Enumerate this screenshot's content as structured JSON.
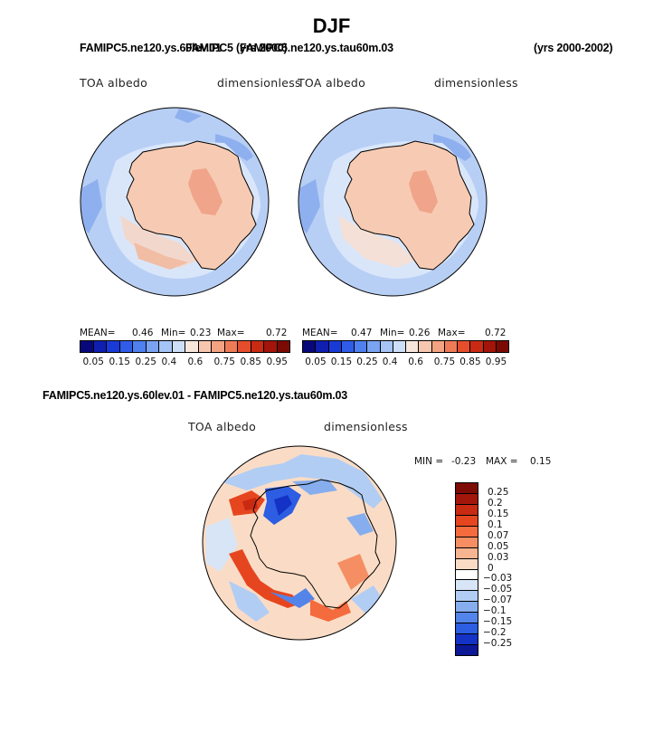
{
  "title": "DJF",
  "top_case_left": "FAMIPC5.ne120.ys.60lev.01",
  "top_case_overlap": "FAMIPC5 (yrs 2000)",
  "top_case_right_name": "FAMIPC5.ne120.ys.tau60m.03",
  "years_right": "(yrs 2000-2002)",
  "panels": [
    {
      "variable": "TOA albedo",
      "units": "dimensionless",
      "mean_label": "MEAN=",
      "mean": "0.46",
      "min_label": "Min=",
      "min": "0.23",
      "max_label": "Max=",
      "max": "0.72"
    },
    {
      "variable": "TOA albedo",
      "units": "dimensionless",
      "mean_label": "MEAN=",
      "mean": "0.47",
      "min_label": "Min=",
      "min": "0.26",
      "max_label": "Max=",
      "max": "0.72"
    }
  ],
  "colorbar": {
    "ticks": [
      "0.05",
      "0.15",
      "0.25",
      "0.4",
      "0.6",
      "0.75",
      "0.85",
      "0.95"
    ],
    "colors": [
      "#08087a",
      "#0f1fb0",
      "#1a3ad8",
      "#2f5ce8",
      "#4f80ef",
      "#7aa3f2",
      "#a6c4f5",
      "#cddff8",
      "#f7e6dc",
      "#f6c7ae",
      "#f3a282",
      "#ef7a56",
      "#e64d2c",
      "#c92a14",
      "#a3140a",
      "#7c0a04"
    ]
  },
  "diff": {
    "title": "FAMIPC5.ne120.ys.60lev.01 - FAMIPC5.ne120.ys.tau60m.03",
    "variable": "TOA albedo",
    "units": "dimensionless",
    "min_label": "MIN =",
    "min": "-0.23",
    "max_label": "MAX =",
    "max": "0.15",
    "ticks": [
      "0.25",
      "0.2",
      "0.15",
      "0.1",
      "0.07",
      "0.05",
      "0.03",
      "0",
      "-0.03",
      "-0.05",
      "-0.07",
      "-0.1",
      "-0.15",
      "-0.2",
      "-0.25"
    ],
    "colors": [
      "#7d0b06",
      "#a3160b",
      "#c82a12",
      "#e6461f",
      "#f46b3d",
      "#f58f63",
      "#f7b491",
      "#fadcc6",
      "#ffffff",
      "#d7e5f7",
      "#b2cdf3",
      "#86aeee",
      "#5384ea",
      "#2c5de2",
      "#1432c6",
      "#0c1896"
    ]
  }
}
